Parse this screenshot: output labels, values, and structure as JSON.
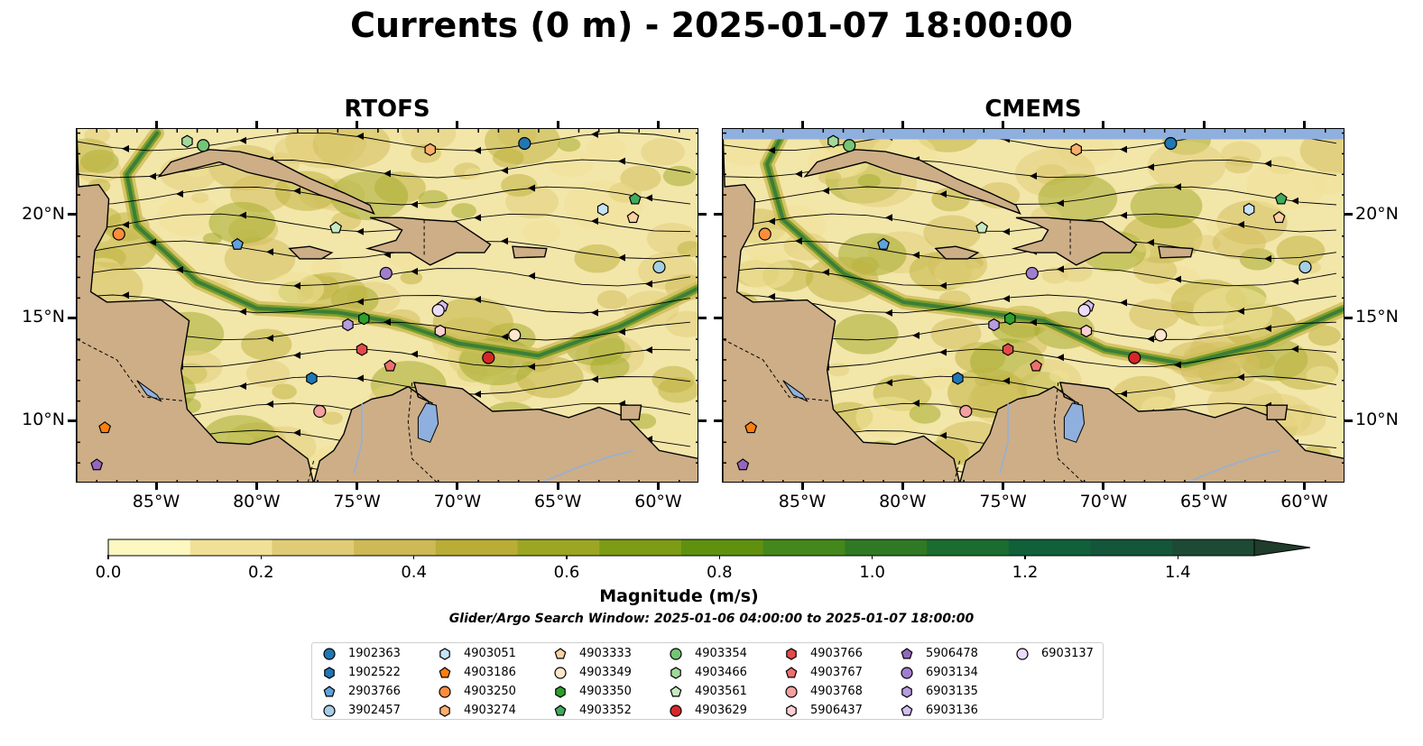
{
  "title": "Currents (0 m) - 2025-01-07 18:00:00",
  "panels": [
    {
      "title": "RTOFS"
    },
    {
      "title": "CMEMS"
    }
  ],
  "map": {
    "lon_range": [
      -89.0,
      -58.0
    ],
    "lat_range": [
      7.0,
      24.2
    ],
    "lon_ticks": [
      "85°W",
      "80°W",
      "75°W",
      "70°W",
      "65°W",
      "60°W"
    ],
    "lat_ticks": [
      "20°N",
      "15°N",
      "10°N"
    ],
    "land_color": "#cdae87",
    "lake_color": "#8fb0de",
    "nodata_color": "#8fb0de"
  },
  "colorbar": {
    "label": "Magnitude (m/s)",
    "ticks": [
      "0.0",
      "0.2",
      "0.4",
      "0.6",
      "0.8",
      "1.0",
      "1.2",
      "1.4"
    ],
    "range": [
      0,
      1.5
    ],
    "extend": "max",
    "colors": [
      "#fdf7c2",
      "#f1e197",
      "#e0cc76",
      "#cdb955",
      "#b9ad36",
      "#9ca623",
      "#7d9b15",
      "#5f910f",
      "#44871a",
      "#2f7924",
      "#1b6c31",
      "#10603a",
      "#14563a",
      "#1d4935",
      "#203c2b"
    ]
  },
  "search_window": "Glider/Argo Search Window: 2025-01-06 04:00:00 to 2025-01-07 18:00:00",
  "legend": [
    {
      "id": "1902363",
      "marker": "circle",
      "color": "#1f77b4"
    },
    {
      "id": "1902522",
      "marker": "hexagon",
      "color": "#1f77b4"
    },
    {
      "id": "2903766",
      "marker": "pentagon",
      "color": "#5fa2dd"
    },
    {
      "id": "3902457",
      "marker": "circle",
      "color": "#a6cee3"
    },
    {
      "id": "4903051",
      "marker": "hexagon",
      "color": "#c6e2f5"
    },
    {
      "id": "4903186",
      "marker": "pentagon",
      "color": "#ff7f0e"
    },
    {
      "id": "4903250",
      "marker": "circle",
      "color": "#fd8d3c"
    },
    {
      "id": "4903274",
      "marker": "hexagon",
      "color": "#fdae6b"
    },
    {
      "id": "4903333",
      "marker": "pentagon",
      "color": "#fdd0a2"
    },
    {
      "id": "4903349",
      "marker": "circle",
      "color": "#fee6ce"
    },
    {
      "id": "4903350",
      "marker": "hexagon",
      "color": "#2ca02c"
    },
    {
      "id": "4903352",
      "marker": "pentagon",
      "color": "#41ab5d"
    },
    {
      "id": "4903354",
      "marker": "circle",
      "color": "#74c476"
    },
    {
      "id": "4903466",
      "marker": "hexagon",
      "color": "#a1d99b"
    },
    {
      "id": "4903561",
      "marker": "pentagon",
      "color": "#c7e9c0"
    },
    {
      "id": "4903629",
      "marker": "circle",
      "color": "#d62728"
    },
    {
      "id": "4903766",
      "marker": "hexagon",
      "color": "#e34a4a"
    },
    {
      "id": "4903767",
      "marker": "pentagon",
      "color": "#ef6f6f"
    },
    {
      "id": "4903768",
      "marker": "circle",
      "color": "#f4a0a0"
    },
    {
      "id": "5906437",
      "marker": "hexagon",
      "color": "#fcd0d0"
    },
    {
      "id": "5906478",
      "marker": "pentagon",
      "color": "#9467bd"
    },
    {
      "id": "6903134",
      "marker": "circle",
      "color": "#a17dcf"
    },
    {
      "id": "6903135",
      "marker": "hexagon",
      "color": "#b89be0"
    },
    {
      "id": "6903136",
      "marker": "pentagon",
      "color": "#d5bdf0"
    },
    {
      "id": "6903137",
      "marker": "circle",
      "color": "#ebdcfa"
    }
  ],
  "floats": [
    {
      "id": "1902363",
      "lon": -66.7,
      "lat": 23.5
    },
    {
      "id": "1902522",
      "lon": -77.3,
      "lat": 12.1
    },
    {
      "id": "2903766",
      "lon": -81.0,
      "lat": 18.6
    },
    {
      "id": "3902457",
      "lon": -60.0,
      "lat": 17.5
    },
    {
      "id": "4903051",
      "lon": -62.8,
      "lat": 20.3
    },
    {
      "id": "4903186",
      "lon": -87.6,
      "lat": 9.7
    },
    {
      "id": "4903250",
      "lon": -86.9,
      "lat": 19.1
    },
    {
      "id": "4903274",
      "lon": -71.4,
      "lat": 23.2
    },
    {
      "id": "4903333",
      "lon": -61.3,
      "lat": 19.9
    },
    {
      "id": "4903349",
      "lon": -67.2,
      "lat": 14.2
    },
    {
      "id": "4903350",
      "lon": -74.7,
      "lat": 15.0
    },
    {
      "id": "4903352",
      "lon": -61.2,
      "lat": 20.8
    },
    {
      "id": "4903354",
      "lon": -82.7,
      "lat": 23.4
    },
    {
      "id": "4903466",
      "lon": -83.5,
      "lat": 23.6
    },
    {
      "id": "4903561",
      "lon": -76.1,
      "lat": 19.4
    },
    {
      "id": "4903629",
      "lon": -68.5,
      "lat": 13.1
    },
    {
      "id": "4903766",
      "lon": -74.8,
      "lat": 13.5
    },
    {
      "id": "4903767",
      "lon": -73.4,
      "lat": 12.7
    },
    {
      "id": "4903768",
      "lon": -76.9,
      "lat": 10.5
    },
    {
      "id": "5906437",
      "lon": -70.9,
      "lat": 14.4
    },
    {
      "id": "5906478",
      "lon": -88.0,
      "lat": 7.9
    },
    {
      "id": "6903134",
      "lon": -73.6,
      "lat": 17.2
    },
    {
      "id": "6903135",
      "lon": -75.5,
      "lat": 14.7
    },
    {
      "id": "6903136",
      "lon": -70.8,
      "lat": 15.6
    },
    {
      "id": "6903137",
      "lon": -71.0,
      "lat": 15.4
    }
  ]
}
